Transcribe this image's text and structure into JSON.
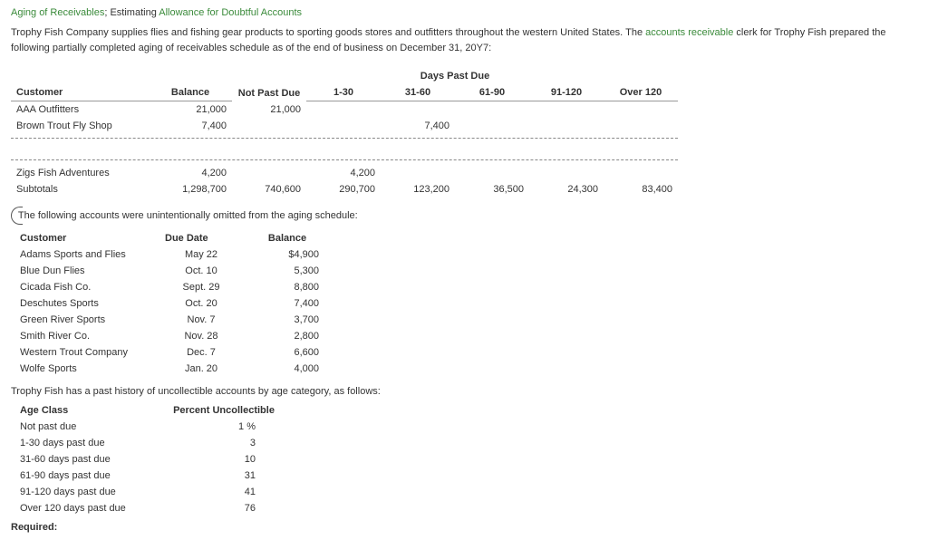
{
  "title": {
    "part1": "Aging of Receivables",
    "sep": "; Estimating ",
    "part2": "Allowance for Doubtful Accounts"
  },
  "intro": {
    "p1a": "Trophy Fish Company supplies flies and fishing gear products to sporting goods stores and outfitters throughout the western United States. The ",
    "link": "accounts receivable",
    "p1b": " clerk for Trophy Fish prepared the following partially completed aging of receivables schedule as of the end of business on December 31, 20Y7:"
  },
  "aging": {
    "headers": {
      "customer": "Customer",
      "balance": "Balance",
      "notPast": "Not Past Due",
      "daysPastDue": "Days Past Due",
      "c1": "1-30",
      "c2": "31-60",
      "c3": "61-90",
      "c4": "91-120",
      "c5": "Over 120"
    },
    "rows": [
      {
        "customer": "AAA Outfitters",
        "balance": "21,000",
        "notPast": "21,000",
        "c1": "",
        "c2": "",
        "c3": "",
        "c4": "",
        "c5": ""
      },
      {
        "customer": "Brown Trout Fly Shop",
        "balance": "7,400",
        "notPast": "",
        "c1": "",
        "c2": "7,400",
        "c3": "",
        "c4": "",
        "c5": ""
      }
    ],
    "rows2": [
      {
        "customer": "Zigs Fish Adventures",
        "balance": "4,200",
        "notPast": "",
        "c1": "4,200",
        "c2": "",
        "c3": "",
        "c4": "",
        "c5": ""
      },
      {
        "customer": "Subtotals",
        "balance": "1,298,700",
        "notPast": "740,600",
        "c1": "290,700",
        "c2": "123,200",
        "c3": "36,500",
        "c4": "24,300",
        "c5": "83,400"
      }
    ]
  },
  "omittedIntro": "The following accounts were unintentionally omitted from the aging schedule:",
  "omitted": {
    "headers": {
      "customer": "Customer",
      "due": "Due Date",
      "balance": "Balance"
    },
    "rows": [
      {
        "customer": "Adams Sports and Flies",
        "due": "May 22",
        "balance": "$4,900"
      },
      {
        "customer": "Blue Dun Flies",
        "due": "Oct. 10",
        "balance": "5,300"
      },
      {
        "customer": "Cicada Fish Co.",
        "due": "Sept. 29",
        "balance": "8,800"
      },
      {
        "customer": "Deschutes Sports",
        "due": "Oct. 20",
        "balance": "7,400"
      },
      {
        "customer": "Green River Sports",
        "due": "Nov. 7",
        "balance": "3,700"
      },
      {
        "customer": "Smith River Co.",
        "due": "Nov. 28",
        "balance": "2,800"
      },
      {
        "customer": "Western Trout Company",
        "due": "Dec. 7",
        "balance": "6,600"
      },
      {
        "customer": "Wolfe Sports",
        "due": "Jan. 20",
        "balance": "4,000"
      }
    ]
  },
  "historyIntro": "Trophy Fish has a past history of uncollectible accounts by age category, as follows:",
  "percent": {
    "headers": {
      "age": "Age Class",
      "pct": "Percent Uncollectible"
    },
    "rows": [
      {
        "age": "Not past due",
        "pct": "1 %"
      },
      {
        "age": "1-30 days past due",
        "pct": "3"
      },
      {
        "age": "31-60 days past due",
        "pct": "10"
      },
      {
        "age": "61-90 days past due",
        "pct": "31"
      },
      {
        "age": "91-120 days past due",
        "pct": "41"
      },
      {
        "age": "Over 120 days past due",
        "pct": "76"
      }
    ]
  },
  "required": "Required:"
}
